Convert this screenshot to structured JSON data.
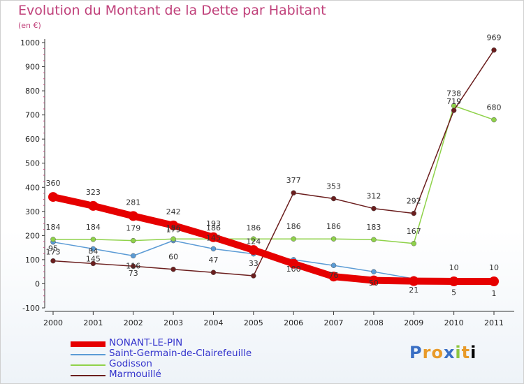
{
  "title": "Evolution du Montant de la Dette par Habitant",
  "subtitle": "(en €)",
  "logo": "Proxiti",
  "chart_data": {
    "type": "line",
    "title": "Evolution du Montant de la Dette par Habitant",
    "subtitle": "(en €)",
    "x": [
      "2000",
      "2001",
      "2002",
      "2003",
      "2004",
      "2005",
      "2006",
      "2007",
      "2008",
      "2009",
      "2010",
      "2011"
    ],
    "y_ticks": [
      "-100",
      "0",
      "100",
      "200",
      "300",
      "400",
      "500",
      "600",
      "700",
      "800",
      "900",
      "1000"
    ],
    "ylim": [
      -100,
      1000
    ],
    "grid": false,
    "legend_position": "bottom-left",
    "series": [
      {
        "name": "NONANT-LE-PIN",
        "color": "#e60000",
        "values": [
          360,
          323,
          281,
          242,
          193,
          140,
          83,
          30,
          14,
          11,
          10,
          10
        ],
        "labels": [
          "360",
          "323",
          "281",
          "242",
          "193",
          "",
          "",
          "",
          "",
          "",
          "10",
          "10"
        ]
      },
      {
        "name": "Saint-Germain-de-Clairefeuille",
        "color": "#5b9bd5",
        "values": [
          173,
          145,
          116,
          179,
          145,
          124,
          100,
          76,
          50,
          21,
          5,
          1
        ],
        "labels": [
          "173",
          "145",
          "116",
          "179",
          "145",
          "124",
          "100",
          "76",
          "50",
          "21",
          "5",
          "1"
        ]
      },
      {
        "name": "Godisson",
        "color": "#8fd24a",
        "values": [
          184,
          184,
          179,
          186,
          186,
          186,
          186,
          186,
          183,
          167,
          738,
          680
        ],
        "labels": [
          "184",
          "184",
          "179",
          "186",
          "186",
          "186",
          "186",
          "186",
          "183",
          "167",
          "738",
          "680"
        ]
      },
      {
        "name": "Marmouillé",
        "color": "#6b1e1e",
        "values": [
          95,
          84,
          73,
          60,
          47,
          33,
          377,
          353,
          312,
          292,
          719,
          969
        ],
        "labels": [
          "95",
          "84",
          "73",
          "60",
          "47",
          "33",
          "377",
          "353",
          "312",
          "292",
          "719",
          "969"
        ]
      }
    ]
  }
}
